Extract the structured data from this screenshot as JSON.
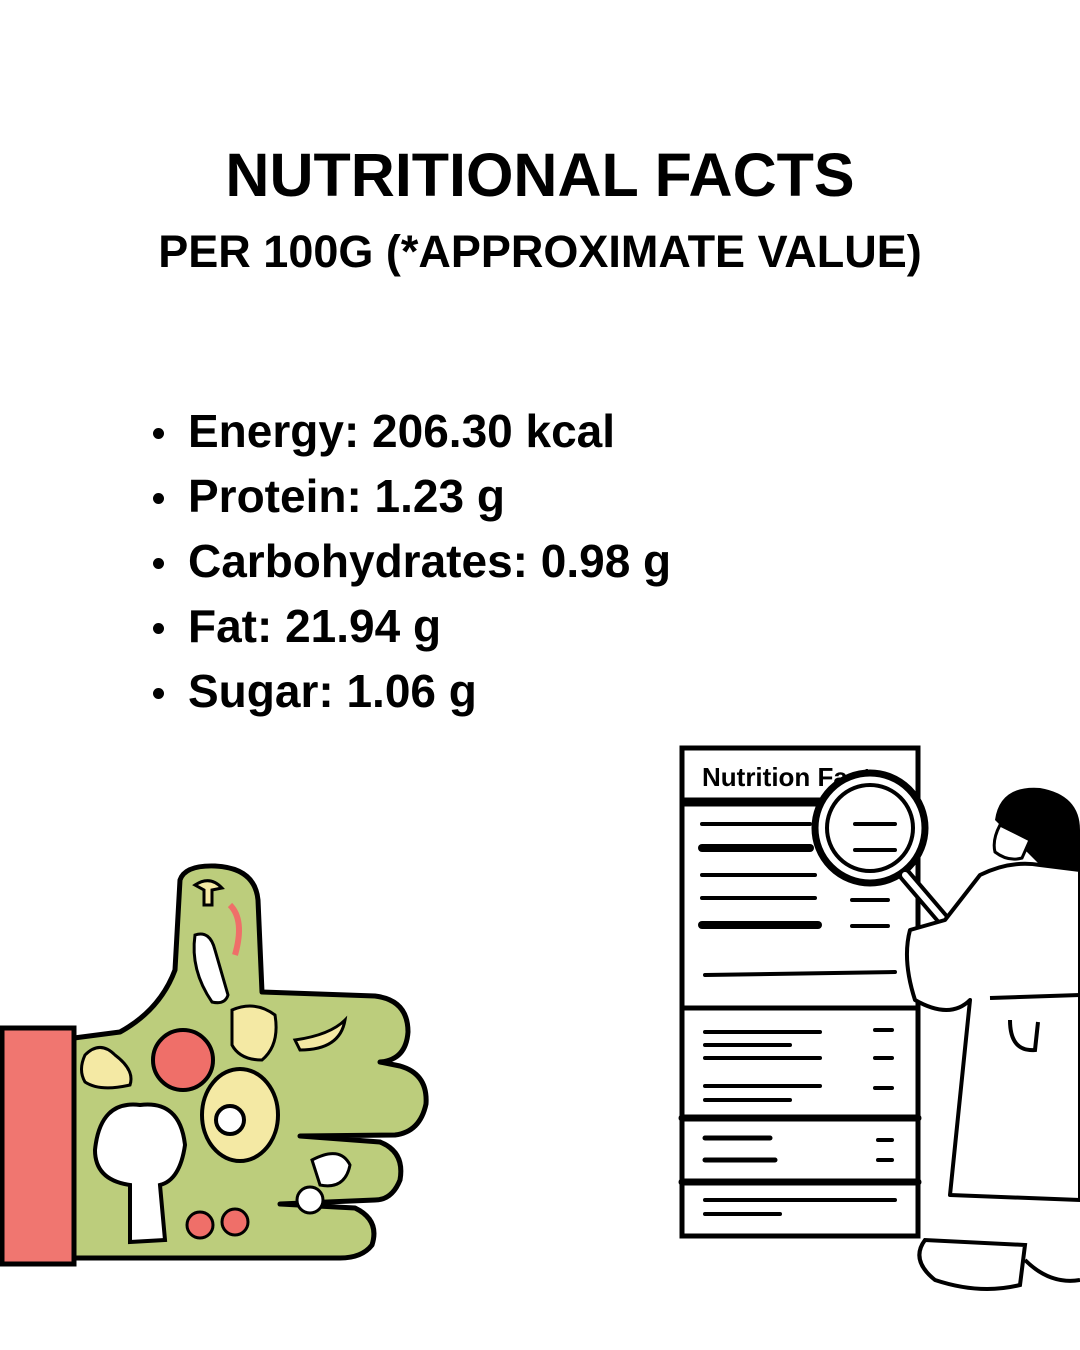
{
  "header": {
    "title": "NUTRITIONAL FACTS",
    "subtitle": "PER 100G (*APPROXIMATE VALUE)"
  },
  "facts": [
    {
      "label": "Energy: 206.30 kcal"
    },
    {
      "label": "Protein: 1.23 g"
    },
    {
      "label": "Carbohydrates: 0.98 g"
    },
    {
      "label": "Fat: 21.94 g"
    },
    {
      "label": "Sugar: 1.06 g"
    }
  ],
  "illustrations": {
    "left": "thumbs-up-vegetables-hand",
    "right": "woman-with-magnifier-reading-label",
    "label_text": "Nutrition Facts"
  },
  "colors": {
    "sleeve": "#f07670",
    "hand_green": "#bccd7c",
    "pale_yellow": "#f4e9a4",
    "red_fruit": "#ef6f69",
    "ink": "#000000"
  }
}
